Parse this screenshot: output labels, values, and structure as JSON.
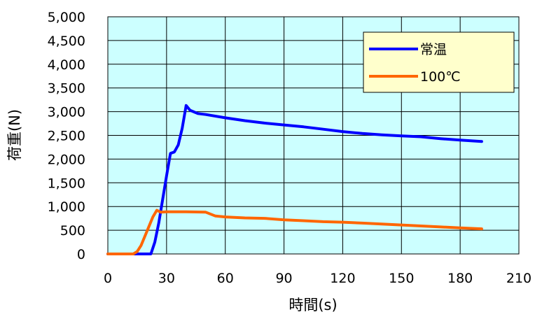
{
  "chart_data": {
    "type": "line",
    "xlabel": "時間(s)",
    "ylabel": "荷重(N)",
    "xlim": [
      0,
      210
    ],
    "ylim": [
      0,
      5000
    ],
    "x_ticks": [
      "0",
      "30",
      "60",
      "90",
      "120",
      "150",
      "180",
      "210"
    ],
    "y_ticks": [
      "0",
      "500",
      "1,000",
      "1,500",
      "2,000",
      "2,500",
      "3,000",
      "3,500",
      "4,000",
      "4,500",
      "5,000"
    ],
    "grid": true,
    "legend_position": "top-right",
    "plot_background": "#ccffff",
    "series": [
      {
        "name": "常温",
        "color": "#0000ff",
        "x": [
          0,
          22,
          24,
          26,
          28,
          30,
          32,
          34,
          36,
          38,
          40,
          42,
          46,
          50,
          60,
          70,
          80,
          90,
          100,
          110,
          120,
          130,
          140,
          150,
          160,
          170,
          180,
          191
        ],
        "y": [
          0,
          0,
          250,
          650,
          1150,
          1650,
          2120,
          2150,
          2300,
          2650,
          3130,
          3030,
          2960,
          2940,
          2870,
          2810,
          2760,
          2720,
          2680,
          2630,
          2580,
          2540,
          2510,
          2490,
          2470,
          2430,
          2400,
          2370
        ]
      },
      {
        "name": "100℃",
        "color": "#ff6600",
        "x": [
          0,
          13,
          15,
          17,
          19,
          21,
          23,
          25,
          27,
          30,
          40,
          50,
          55,
          60,
          70,
          80,
          90,
          100,
          110,
          120,
          130,
          140,
          150,
          160,
          170,
          180,
          191
        ],
        "y": [
          0,
          0,
          50,
          180,
          380,
          580,
          780,
          920,
          880,
          890,
          890,
          880,
          800,
          780,
          760,
          750,
          720,
          700,
          680,
          670,
          650,
          630,
          610,
          590,
          570,
          550,
          530
        ]
      }
    ]
  }
}
